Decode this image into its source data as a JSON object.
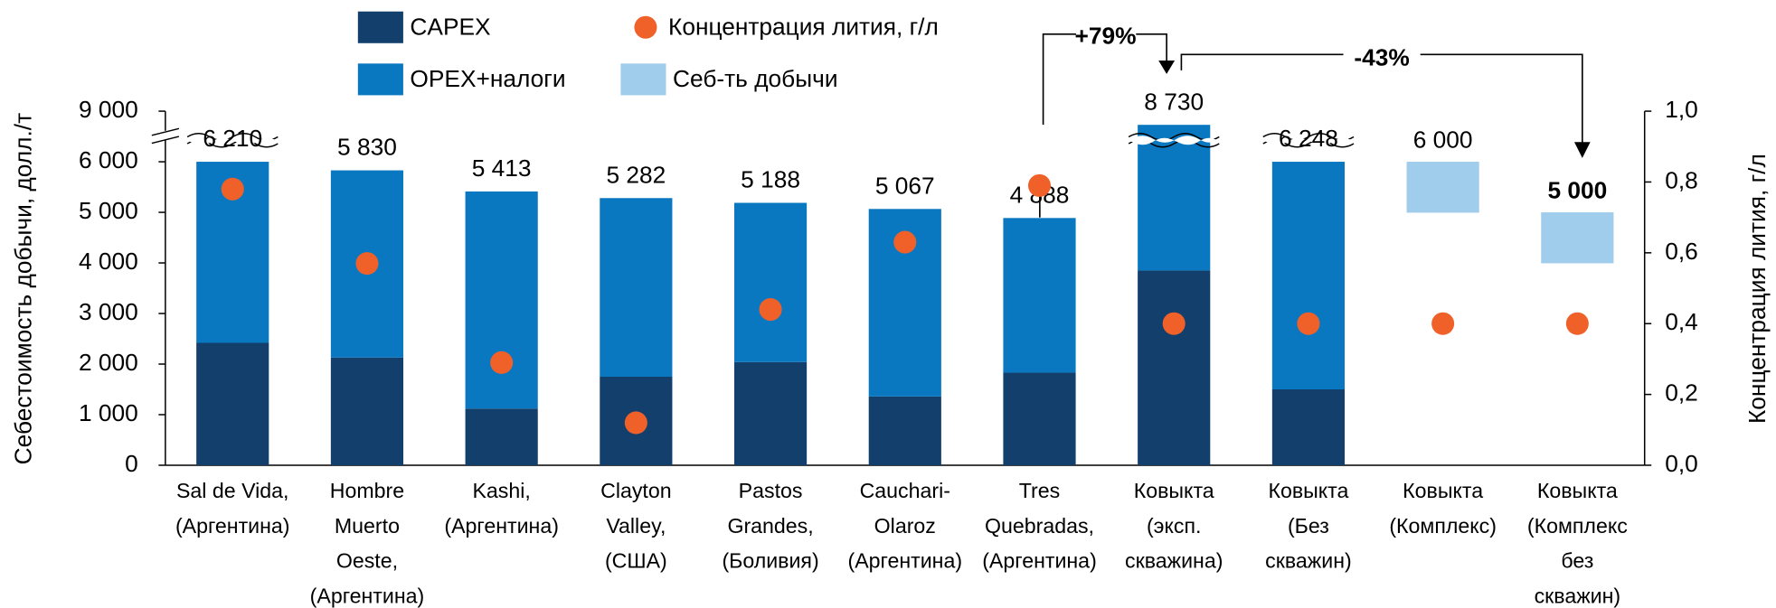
{
  "chart_data": {
    "type": "bar",
    "ylabel": "Себестоимость добычи, долл./т",
    "y2label": "Концентрация лития, г/л",
    "categories": [
      [
        "Sal de Vida,",
        "(Аргентина)"
      ],
      [
        "Hombre",
        "Muerto",
        "Oeste,",
        "(Аргентина)"
      ],
      [
        "Kashi,",
        "(Аргентина)"
      ],
      [
        "Clayton",
        "Valley,",
        "(США)"
      ],
      [
        "Pastos",
        "Grandes,",
        "(Боливия)"
      ],
      [
        "Cauchari-",
        "Olaroz",
        "(Аргентина)"
      ],
      [
        "Tres",
        "Quebradas,",
        "(Аргентина)"
      ],
      [
        "Ковыкта",
        "(эксп.",
        "скважина)"
      ],
      [
        "Ковыкта",
        "(Без",
        "скважин)"
      ],
      [
        "Ковыкта",
        "(Комплекс)"
      ],
      [
        "Ковыкта",
        "(Комплекс",
        "без",
        "скважин)"
      ]
    ],
    "series": [
      {
        "name": "CAPEX",
        "mark": "bar",
        "color": "#123f6b",
        "values": [
          2420,
          2130,
          1120,
          1750,
          2040,
          1360,
          1830,
          3850,
          1500,
          null,
          null
        ]
      },
      {
        "name": "OPEX+налоги",
        "mark": "bar",
        "color": "#0a78c0",
        "values": [
          3790,
          3700,
          4293,
          3532,
          3148,
          3707,
          3058,
          4880,
          4748,
          null,
          null
        ]
      },
      {
        "name": "Себ-ть добычи",
        "mark": "box",
        "color": "#9fcdeb",
        "values": [
          null,
          null,
          null,
          null,
          null,
          null,
          null,
          null,
          null,
          6000,
          5000
        ],
        "value_labels": [
          null,
          null,
          null,
          null,
          null,
          null,
          null,
          null,
          null,
          "6 000",
          "5 000"
        ]
      },
      {
        "name": "Концентрация лития, г/л",
        "mark": "dot",
        "color": "#f0612a",
        "axis": "y2",
        "values": [
          0.78,
          0.57,
          0.29,
          0.12,
          0.44,
          0.63,
          0.79,
          0.4,
          0.4,
          0.4,
          0.4
        ]
      }
    ],
    "totals": {
      "values": [
        6210,
        5830,
        5413,
        5282,
        5188,
        5067,
        4888,
        8730,
        6248,
        null,
        null
      ],
      "value_labels": [
        "6 210",
        "5 830",
        "5 413",
        "5 282",
        "5 188",
        "5 067",
        "4 888",
        "8 730",
        "6 248",
        null,
        null
      ]
    },
    "highlight": {
      "series": 2,
      "index": 10,
      "color": "#f0612a"
    },
    "ylim": [
      0,
      9000
    ],
    "ybreak": [
      6000,
      8000
    ],
    "yticks": [
      0,
      {
        "value": 1000,
        "label": "1 000"
      },
      {
        "value": 2000,
        "label": "2 000"
      },
      {
        "value": 3000,
        "label": "3 000"
      },
      {
        "value": 4000,
        "label": "4 000"
      },
      {
        "value": 5000,
        "label": "5 000"
      },
      {
        "value": 6000,
        "label": "6 000"
      },
      {
        "value": 9000,
        "label": "9 000"
      }
    ],
    "y2lim": [
      0,
      1
    ],
    "y2ticks": [
      {
        "value": 0,
        "label": "0,0"
      },
      {
        "value": 0.2,
        "label": "0,2"
      },
      {
        "value": 0.4,
        "label": "0,4"
      },
      {
        "value": 0.6,
        "label": "0,6"
      },
      {
        "value": 0.8,
        "label": "0,8"
      },
      {
        "value": 1,
        "label": "1,0"
      }
    ],
    "annotations": [
      "+79%",
      "-43%"
    ],
    "legend": "top"
  }
}
